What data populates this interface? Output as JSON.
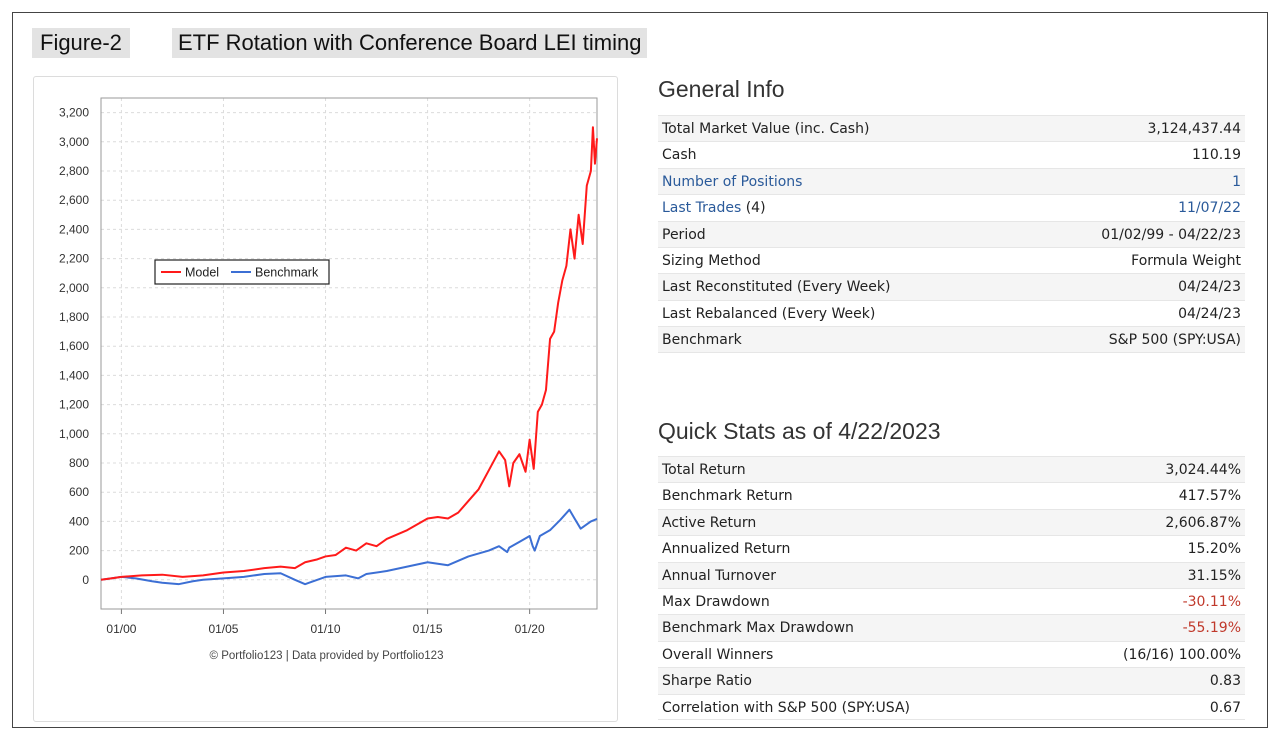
{
  "figure_label": "Figure-2",
  "figure_title": "ETF Rotation with Conference Board LEI timing",
  "chart_credit": "© Portfolio123 | Data provided by Portfolio123",
  "colors": {
    "model": "#ff1a1a",
    "benchmark": "#3c6fd4",
    "negative": "#c0392b",
    "link": "#2a5a9a"
  },
  "chart_data": {
    "type": "line",
    "title": "",
    "xlabel": "",
    "ylabel": "",
    "x_ticks": [
      "01/00",
      "01/05",
      "01/10",
      "01/15",
      "01/20"
    ],
    "x_tick_years": [
      2000,
      2005,
      2010,
      2015,
      2020
    ],
    "xlim": [
      1999.0,
      2023.3
    ],
    "y_ticks": [
      0,
      200,
      400,
      600,
      800,
      1000,
      1200,
      1400,
      1600,
      1800,
      2000,
      2200,
      2400,
      2600,
      2800,
      3000,
      3200
    ],
    "y_tick_labels": [
      "0",
      "200",
      "400",
      "600",
      "800",
      "1,000",
      "1,200",
      "1,400",
      "1,600",
      "1,800",
      "2,000",
      "2,200",
      "2,400",
      "2,600",
      "2,800",
      "3,000",
      "3,200"
    ],
    "ylim": [
      -200,
      3300
    ],
    "grid": true,
    "legend": {
      "placement": "left-middle",
      "entries": [
        "Model",
        "Benchmark"
      ]
    },
    "series": [
      {
        "name": "Model",
        "x": [
          1999.0,
          1999.5,
          2000.0,
          2001.0,
          2002.0,
          2003.0,
          2004.0,
          2005.0,
          2006.0,
          2007.0,
          2007.8,
          2008.5,
          2009.0,
          2009.6,
          2010.0,
          2010.5,
          2011.0,
          2011.5,
          2012.0,
          2012.5,
          2013.0,
          2014.0,
          2015.0,
          2015.5,
          2016.0,
          2016.5,
          2017.0,
          2017.5,
          2018.0,
          2018.5,
          2018.8,
          2019.0,
          2019.2,
          2019.5,
          2019.8,
          2020.0,
          2020.2,
          2020.4,
          2020.6,
          2020.8,
          2021.0,
          2021.2,
          2021.4,
          2021.6,
          2021.8,
          2022.0,
          2022.2,
          2022.4,
          2022.6,
          2022.8,
          2023.0,
          2023.1,
          2023.2,
          2023.3
        ],
        "values": [
          0,
          10,
          20,
          30,
          35,
          20,
          30,
          50,
          60,
          80,
          90,
          80,
          120,
          140,
          160,
          170,
          220,
          200,
          250,
          230,
          280,
          340,
          420,
          430,
          420,
          460,
          540,
          620,
          750,
          880,
          820,
          640,
          800,
          860,
          740,
          960,
          760,
          1150,
          1200,
          1300,
          1650,
          1700,
          1900,
          2050,
          2150,
          2400,
          2200,
          2500,
          2300,
          2700,
          2800,
          3100,
          2850,
          3024
        ]
      },
      {
        "name": "Benchmark",
        "x": [
          1999.0,
          1999.5,
          2000.0,
          2000.7,
          2001.5,
          2002.0,
          2002.8,
          2003.5,
          2004.0,
          2005.0,
          2006.0,
          2007.0,
          2007.8,
          2008.5,
          2009.0,
          2009.2,
          2009.6,
          2010.0,
          2011.0,
          2011.6,
          2012.0,
          2013.0,
          2014.0,
          2015.0,
          2015.5,
          2016.0,
          2016.5,
          2017.0,
          2018.0,
          2018.5,
          2018.9,
          2019.0,
          2019.5,
          2020.0,
          2020.15,
          2020.25,
          2020.5,
          2021.0,
          2021.5,
          2021.95,
          2022.2,
          2022.5,
          2022.8,
          2023.0,
          2023.3
        ],
        "values": [
          0,
          10,
          20,
          10,
          -10,
          -20,
          -30,
          -10,
          0,
          10,
          20,
          40,
          45,
          0,
          -30,
          -20,
          0,
          20,
          30,
          10,
          40,
          60,
          90,
          120,
          110,
          100,
          130,
          160,
          200,
          230,
          190,
          220,
          260,
          300,
          230,
          200,
          300,
          340,
          410,
          480,
          420,
          350,
          380,
          400,
          417
        ]
      }
    ]
  },
  "general_info": {
    "title": "General Info",
    "rows": [
      {
        "label": "Total Market Value (inc. Cash)",
        "value": "3,124,437.44"
      },
      {
        "label": "Cash",
        "value": "110.19"
      },
      {
        "label": "Number of Positions",
        "value": "1"
      },
      {
        "label": "Last Trades",
        "label_suffix": "(4)",
        "value": "11/07/22"
      },
      {
        "label": "Period",
        "value": "01/02/99 - 04/22/23"
      },
      {
        "label": "Sizing Method",
        "value": "Formula Weight"
      },
      {
        "label": "Last Reconstituted (Every Week)",
        "value": "04/24/23"
      },
      {
        "label": "Last Rebalanced (Every Week)",
        "value": "04/24/23"
      },
      {
        "label": "Benchmark",
        "value": "S&P 500 (SPY:USA)"
      }
    ]
  },
  "quick_stats": {
    "title": "Quick Stats as of 4/22/2023",
    "rows": [
      {
        "label": "Total Return",
        "value": "3,024.44%"
      },
      {
        "label": "Benchmark Return",
        "value": "417.57%"
      },
      {
        "label": "Active Return",
        "value": "2,606.87%"
      },
      {
        "label": "Annualized Return",
        "value": "15.20%"
      },
      {
        "label": "Annual Turnover",
        "value": "31.15%"
      },
      {
        "label": "Max Drawdown",
        "value": "-30.11%"
      },
      {
        "label": "Benchmark Max Drawdown",
        "value": "-55.19%"
      },
      {
        "label": "Overall Winners",
        "value": "(16/16) 100.00%"
      },
      {
        "label": "Sharpe Ratio",
        "value": "0.83"
      },
      {
        "label": "Correlation with S&P 500 (SPY:USA)",
        "value": "0.67"
      }
    ]
  }
}
